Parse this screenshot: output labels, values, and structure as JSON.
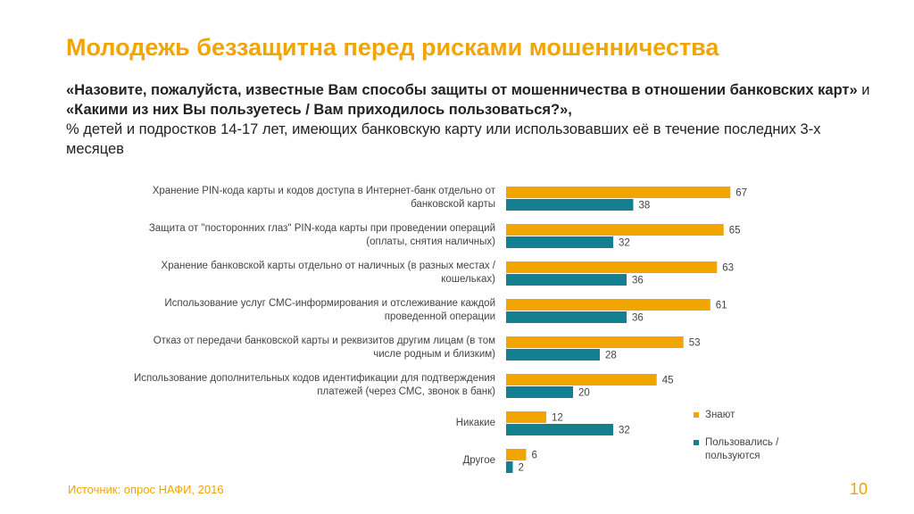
{
  "header": {
    "title": "Молодежь беззащитна перед рисками мошенничества",
    "subtitle": [
      "«Назовите, пожалуйста, известные Вам способы защиты от мошенничества в отношении банковских карт»",
      " и ",
      "«Какими из них Вы пользуетесь / Вам приходилось пользоваться?»,",
      "% детей и подростков 14-17 лет, имеющих банковскую карту или использовавших её в течение последних 3-х месяцев"
    ]
  },
  "chart_data": {
    "type": "bar",
    "orientation": "horizontal",
    "categories": [
      "Хранение PIN-кода карты и кодов доступа в Интернет-банк отдельно от банковской карты",
      "Защита от \"посторонних глаз\" PIN-кода карты при проведении операций (оплаты, снятия наличных)",
      "Хранение банковской карты отдельно от наличных (в разных местах / кошельках)",
      "Использование услуг СМС-информирования и отслеживание каждой проведенной операции",
      "Отказ от передачи банковской карты и реквизитов другим лицам (в том числе родным и близким)",
      "Использование дополнительных кодов идентификации для подтверждения платежей (через СМС, звонок в банк)",
      "Никакие",
      "Другое"
    ],
    "series": [
      {
        "name": "Знают",
        "color": "#f0a500",
        "values": [
          67,
          65,
          63,
          61,
          53,
          45,
          12,
          6
        ]
      },
      {
        "name": "Пользовались / пользуются",
        "color": "#14808f",
        "values": [
          38,
          32,
          36,
          36,
          28,
          20,
          32,
          2
        ]
      }
    ],
    "legend": "right"
  },
  "footer": {
    "source": "Источник: опрос НАФИ, 2016",
    "page_number": "10"
  }
}
